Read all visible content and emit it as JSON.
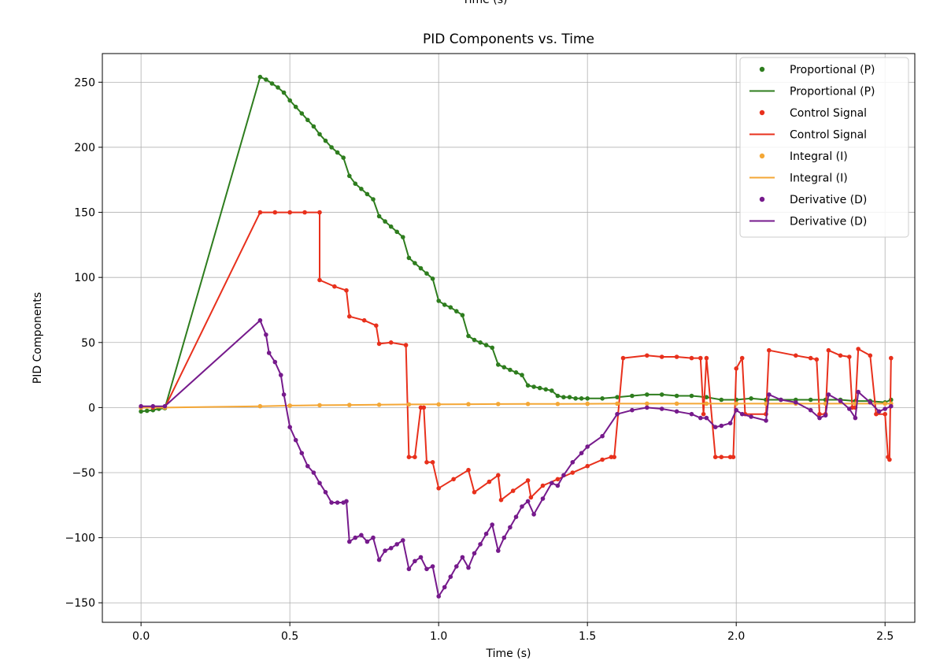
{
  "chart_data": {
    "type": "line",
    "title": "PID Components vs. Time",
    "top_clipped_label": "Time (s)",
    "xlabel": "Time (s)",
    "ylabel": "PID Components",
    "xlim": [
      -0.13,
      2.6
    ],
    "ylim": [
      -165,
      272
    ],
    "xticks": [
      0.0,
      0.5,
      1.0,
      1.5,
      2.0,
      2.5
    ],
    "xtick_labels": [
      "0.0",
      "0.5",
      "1.0",
      "1.5",
      "2.0",
      "2.5"
    ],
    "yticks": [
      -150,
      -100,
      -50,
      0,
      50,
      100,
      150,
      200,
      250
    ],
    "ytick_labels": [
      "−150",
      "−100",
      "−50",
      "0",
      "50",
      "100",
      "150",
      "200",
      "250"
    ],
    "grid": true,
    "legend_position": "top-right",
    "legend": [
      {
        "label": "Proportional (P)",
        "kind": "marker",
        "color": "#2e7d1e"
      },
      {
        "label": "Proportional (P)",
        "kind": "line",
        "color": "#2e7d1e"
      },
      {
        "label": "Control Signal",
        "kind": "marker",
        "color": "#e8301c"
      },
      {
        "label": "Control Signal",
        "kind": "line",
        "color": "#e8301c"
      },
      {
        "label": "Integral (I)",
        "kind": "marker",
        "color": "#f4a736"
      },
      {
        "label": "Integral (I)",
        "kind": "line",
        "color": "#f4a736"
      },
      {
        "label": "Derivative (D)",
        "kind": "marker",
        "color": "#761a8c"
      },
      {
        "label": "Derivative (D)",
        "kind": "line",
        "color": "#761a8c"
      }
    ],
    "series": [
      {
        "name": "Proportional (P)",
        "color": "#2e7d1e",
        "points": [
          [
            0.0,
            -3
          ],
          [
            0.02,
            -2.5
          ],
          [
            0.04,
            -2
          ],
          [
            0.06,
            -1
          ],
          [
            0.08,
            -0.5
          ],
          [
            0.4,
            254
          ],
          [
            0.42,
            252
          ],
          [
            0.44,
            249
          ],
          [
            0.46,
            246
          ],
          [
            0.48,
            242
          ],
          [
            0.5,
            236
          ],
          [
            0.52,
            231
          ],
          [
            0.54,
            226
          ],
          [
            0.56,
            221
          ],
          [
            0.58,
            216
          ],
          [
            0.6,
            210
          ],
          [
            0.62,
            205
          ],
          [
            0.64,
            200
          ],
          [
            0.66,
            196
          ],
          [
            0.68,
            192
          ],
          [
            0.7,
            178
          ],
          [
            0.72,
            172
          ],
          [
            0.74,
            168
          ],
          [
            0.76,
            164
          ],
          [
            0.78,
            160
          ],
          [
            0.8,
            147
          ],
          [
            0.82,
            143
          ],
          [
            0.84,
            139
          ],
          [
            0.86,
            135
          ],
          [
            0.88,
            131
          ],
          [
            0.9,
            115
          ],
          [
            0.92,
            111
          ],
          [
            0.94,
            107
          ],
          [
            0.96,
            103
          ],
          [
            0.98,
            99
          ],
          [
            1.0,
            82
          ],
          [
            1.02,
            79
          ],
          [
            1.04,
            77
          ],
          [
            1.06,
            74
          ],
          [
            1.08,
            71
          ],
          [
            1.1,
            55
          ],
          [
            1.12,
            52
          ],
          [
            1.14,
            50
          ],
          [
            1.16,
            48
          ],
          [
            1.18,
            46
          ],
          [
            1.2,
            33
          ],
          [
            1.22,
            31
          ],
          [
            1.24,
            29
          ],
          [
            1.26,
            27
          ],
          [
            1.28,
            25
          ],
          [
            1.3,
            17
          ],
          [
            1.32,
            16
          ],
          [
            1.34,
            15
          ],
          [
            1.36,
            14
          ],
          [
            1.38,
            13
          ],
          [
            1.4,
            9
          ],
          [
            1.42,
            8
          ],
          [
            1.44,
            8
          ],
          [
            1.46,
            7
          ],
          [
            1.48,
            7
          ],
          [
            1.5,
            7
          ],
          [
            1.55,
            7
          ],
          [
            1.6,
            8
          ],
          [
            1.65,
            9
          ],
          [
            1.7,
            10
          ],
          [
            1.75,
            10
          ],
          [
            1.8,
            9
          ],
          [
            1.85,
            9
          ],
          [
            1.9,
            8
          ],
          [
            1.95,
            6
          ],
          [
            2.0,
            6
          ],
          [
            2.05,
            7
          ],
          [
            2.1,
            6
          ],
          [
            2.15,
            6
          ],
          [
            2.2,
            6
          ],
          [
            2.25,
            6
          ],
          [
            2.3,
            6
          ],
          [
            2.35,
            6
          ],
          [
            2.4,
            5
          ],
          [
            2.45,
            5
          ],
          [
            2.5,
            4
          ],
          [
            2.52,
            6
          ]
        ]
      },
      {
        "name": "Control Signal",
        "color": "#e8301c",
        "points": [
          [
            0.0,
            0
          ],
          [
            0.04,
            0
          ],
          [
            0.08,
            0
          ],
          [
            0.4,
            150
          ],
          [
            0.45,
            150
          ],
          [
            0.5,
            150
          ],
          [
            0.55,
            150
          ],
          [
            0.6,
            150
          ],
          [
            0.6,
            98
          ],
          [
            0.65,
            93
          ],
          [
            0.69,
            90
          ],
          [
            0.7,
            70
          ],
          [
            0.75,
            67
          ],
          [
            0.79,
            63
          ],
          [
            0.8,
            49
          ],
          [
            0.84,
            50
          ],
          [
            0.89,
            48
          ],
          [
            0.9,
            -38
          ],
          [
            0.92,
            -38
          ],
          [
            0.94,
            0
          ],
          [
            0.95,
            0
          ],
          [
            0.96,
            -42
          ],
          [
            0.98,
            -42
          ],
          [
            1.0,
            -62
          ],
          [
            1.05,
            -55
          ],
          [
            1.1,
            -48
          ],
          [
            1.12,
            -65
          ],
          [
            1.17,
            -57
          ],
          [
            1.2,
            -52
          ],
          [
            1.21,
            -71
          ],
          [
            1.25,
            -64
          ],
          [
            1.3,
            -56
          ],
          [
            1.31,
            -69
          ],
          [
            1.35,
            -60
          ],
          [
            1.4,
            -55
          ],
          [
            1.45,
            -50
          ],
          [
            1.5,
            -45
          ],
          [
            1.55,
            -40
          ],
          [
            1.58,
            -38
          ],
          [
            1.59,
            -38
          ],
          [
            1.62,
            38
          ],
          [
            1.7,
            40
          ],
          [
            1.75,
            39
          ],
          [
            1.8,
            39
          ],
          [
            1.85,
            38
          ],
          [
            1.88,
            38
          ],
          [
            1.89,
            -5
          ],
          [
            1.9,
            38
          ],
          [
            1.93,
            -38
          ],
          [
            1.95,
            -38
          ],
          [
            1.98,
            -38
          ],
          [
            1.99,
            -38
          ],
          [
            2.0,
            30
          ],
          [
            2.02,
            38
          ],
          [
            2.03,
            -5
          ],
          [
            2.1,
            -5
          ],
          [
            2.11,
            44
          ],
          [
            2.2,
            40
          ],
          [
            2.25,
            38
          ],
          [
            2.27,
            37
          ],
          [
            2.28,
            -5
          ],
          [
            2.3,
            -5
          ],
          [
            2.31,
            44
          ],
          [
            2.35,
            40
          ],
          [
            2.38,
            39
          ],
          [
            2.39,
            0
          ],
          [
            2.4,
            0
          ],
          [
            2.41,
            45
          ],
          [
            2.45,
            40
          ],
          [
            2.47,
            -5
          ],
          [
            2.5,
            -5
          ],
          [
            2.51,
            -38
          ],
          [
            2.515,
            -40
          ],
          [
            2.52,
            38
          ]
        ]
      },
      {
        "name": "Integral (I)",
        "color": "#f4a736",
        "points": [
          [
            0.0,
            0
          ],
          [
            0.08,
            0
          ],
          [
            0.4,
            1
          ],
          [
            0.5,
            1.5
          ],
          [
            0.6,
            1.8
          ],
          [
            0.7,
            2
          ],
          [
            0.8,
            2.2
          ],
          [
            0.9,
            2.4
          ],
          [
            1.0,
            2.5
          ],
          [
            1.1,
            2.6
          ],
          [
            1.2,
            2.7
          ],
          [
            1.3,
            2.8
          ],
          [
            1.4,
            2.8
          ],
          [
            1.5,
            2.9
          ],
          [
            1.6,
            3
          ],
          [
            1.7,
            3
          ],
          [
            1.8,
            3
          ],
          [
            1.9,
            3
          ],
          [
            2.0,
            3
          ],
          [
            2.1,
            3
          ],
          [
            2.2,
            3
          ],
          [
            2.3,
            3
          ],
          [
            2.4,
            3
          ],
          [
            2.5,
            3
          ],
          [
            2.52,
            3
          ]
        ]
      },
      {
        "name": "Derivative (D)",
        "color": "#761a8c",
        "points": [
          [
            0.0,
            1
          ],
          [
            0.04,
            1
          ],
          [
            0.08,
            1
          ],
          [
            0.4,
            67
          ],
          [
            0.42,
            56
          ],
          [
            0.43,
            42
          ],
          [
            0.45,
            35
          ],
          [
            0.47,
            25
          ],
          [
            0.48,
            10
          ],
          [
            0.5,
            -15
          ],
          [
            0.52,
            -25
          ],
          [
            0.54,
            -35
          ],
          [
            0.56,
            -45
          ],
          [
            0.58,
            -50
          ],
          [
            0.6,
            -58
          ],
          [
            0.62,
            -65
          ],
          [
            0.64,
            -73
          ],
          [
            0.66,
            -73
          ],
          [
            0.68,
            -73
          ],
          [
            0.69,
            -72
          ],
          [
            0.7,
            -103
          ],
          [
            0.72,
            -100
          ],
          [
            0.74,
            -98
          ],
          [
            0.76,
            -103
          ],
          [
            0.78,
            -100
          ],
          [
            0.8,
            -117
          ],
          [
            0.82,
            -110
          ],
          [
            0.84,
            -108
          ],
          [
            0.86,
            -105
          ],
          [
            0.88,
            -102
          ],
          [
            0.9,
            -124
          ],
          [
            0.92,
            -118
          ],
          [
            0.94,
            -115
          ],
          [
            0.96,
            -124
          ],
          [
            0.98,
            -122
          ],
          [
            1.0,
            -145
          ],
          [
            1.02,
            -138
          ],
          [
            1.04,
            -130
          ],
          [
            1.06,
            -122
          ],
          [
            1.08,
            -115
          ],
          [
            1.1,
            -123
          ],
          [
            1.12,
            -112
          ],
          [
            1.14,
            -105
          ],
          [
            1.16,
            -97
          ],
          [
            1.18,
            -90
          ],
          [
            1.2,
            -110
          ],
          [
            1.22,
            -100
          ],
          [
            1.24,
            -92
          ],
          [
            1.26,
            -84
          ],
          [
            1.28,
            -76
          ],
          [
            1.3,
            -72
          ],
          [
            1.32,
            -82
          ],
          [
            1.35,
            -70
          ],
          [
            1.38,
            -58
          ],
          [
            1.4,
            -60
          ],
          [
            1.42,
            -52
          ],
          [
            1.45,
            -42
          ],
          [
            1.48,
            -35
          ],
          [
            1.5,
            -30
          ],
          [
            1.55,
            -22
          ],
          [
            1.6,
            -5
          ],
          [
            1.65,
            -2
          ],
          [
            1.7,
            0
          ],
          [
            1.75,
            -1
          ],
          [
            1.8,
            -3
          ],
          [
            1.85,
            -5
          ],
          [
            1.88,
            -8
          ],
          [
            1.9,
            -8
          ],
          [
            1.93,
            -15
          ],
          [
            1.95,
            -14
          ],
          [
            1.98,
            -12
          ],
          [
            2.0,
            -2
          ],
          [
            2.02,
            -5
          ],
          [
            2.05,
            -7
          ],
          [
            2.1,
            -10
          ],
          [
            2.11,
            10
          ],
          [
            2.15,
            6
          ],
          [
            2.2,
            4
          ],
          [
            2.25,
            -2
          ],
          [
            2.28,
            -8
          ],
          [
            2.3,
            -6
          ],
          [
            2.31,
            10
          ],
          [
            2.35,
            5
          ],
          [
            2.38,
            -1
          ],
          [
            2.4,
            -8
          ],
          [
            2.41,
            12
          ],
          [
            2.45,
            4
          ],
          [
            2.48,
            -3
          ],
          [
            2.5,
            -1
          ],
          [
            2.52,
            1
          ]
        ]
      }
    ]
  }
}
